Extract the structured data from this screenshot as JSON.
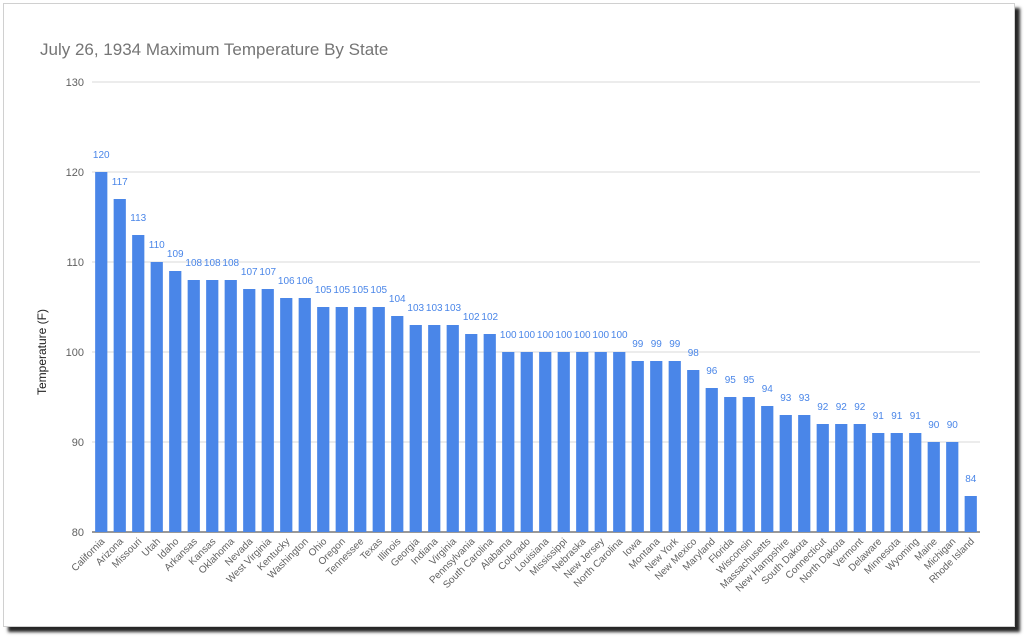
{
  "chart_data": {
    "type": "bar",
    "title": "July 26, 1934 Maximum Temperature By State",
    "xlabel": "",
    "ylabel": "Temperature (F)",
    "ylim": [
      80,
      130
    ],
    "yticks": [
      80,
      90,
      100,
      110,
      120,
      130
    ],
    "grid": true,
    "bar_color": "#4a86e8",
    "label_color": "#4a86e8",
    "categories": [
      "California",
      "Arizona",
      "Missouri",
      "Utah",
      "Idaho",
      "Arkansas",
      "Kansas",
      "Oklahoma",
      "Nevada",
      "West Virginia",
      "Kentucky",
      "Washington",
      "Ohio",
      "Oregon",
      "Tennessee",
      "Texas",
      "Illinois",
      "Georgia",
      "Indiana",
      "Virginia",
      "Pennsylvania",
      "South Carolina",
      "Alabama",
      "Colorado",
      "Louisiana",
      "Mississippi",
      "Nebraska",
      "New Jersey",
      "North Carolina",
      "Iowa",
      "Montana",
      "New York",
      "New Mexico",
      "Maryland",
      "Florida",
      "Wisconsin",
      "Massachusetts",
      "New Hampshire",
      "South Dakota",
      "Connecticut",
      "North Dakota",
      "Vermont",
      "Delaware",
      "Minnesota",
      "Wyoming",
      "Maine",
      "Michigan",
      "Rhode Island"
    ],
    "values": [
      120,
      117,
      113,
      110,
      109,
      108,
      108,
      108,
      107,
      107,
      106,
      106,
      105,
      105,
      105,
      105,
      104,
      103,
      103,
      103,
      102,
      102,
      100,
      100,
      100,
      100,
      100,
      100,
      100,
      99,
      99,
      99,
      98,
      96,
      95,
      95,
      94,
      93,
      93,
      92,
      92,
      92,
      91,
      91,
      91,
      90,
      90,
      84
    ]
  }
}
